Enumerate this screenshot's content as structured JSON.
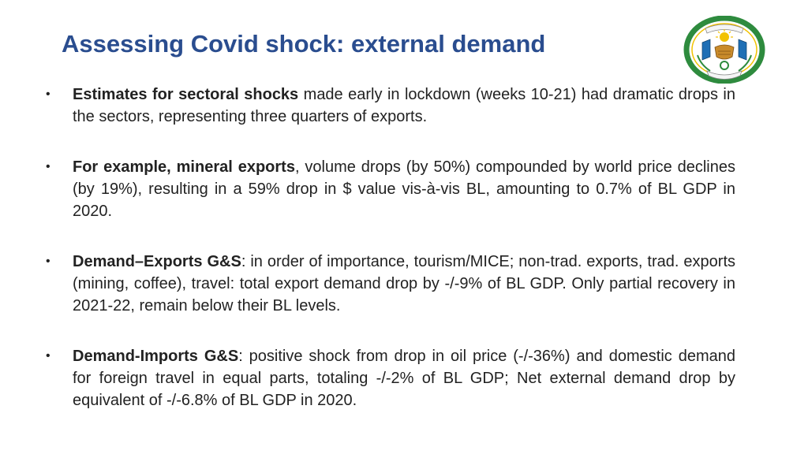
{
  "slide": {
    "title": "Assessing Covid shock: external demand",
    "emblem_icon": "rwanda-coat-of-arms-icon",
    "colors": {
      "title": "#2a4d8f",
      "body_text": "#222222",
      "emblem_green": "#2e8b3e",
      "emblem_yellow": "#f2c200",
      "emblem_blue": "#1f6fb5"
    },
    "bullets": [
      {
        "marker": "•",
        "lead": "Estimates for sectoral shocks",
        "rest": " made early in lockdown (weeks 10-21) had dramatic drops in the sectors, representing three quarters of exports."
      },
      {
        "marker": "•",
        "lead": "For example, mineral exports",
        "rest": ", volume drops (by 50%) compounded by world price declines (by 19%), resulting in a 59% drop in $ value vis-à-vis BL, amounting to 0.7% of BL GDP in 2020."
      },
      {
        "marker": "•",
        "lead": "Demand–Exports G&S",
        "rest": ": in order of importance, tourism/MICE; non-trad. exports, trad. exports (mining, coffee), travel: total export demand drop by -/-9% of BL GDP. Only partial recovery in 2021-22, remain below their BL levels."
      },
      {
        "marker": "•",
        "lead": "Demand-Imports G&S",
        "rest": ": positive shock from drop in oil price (-/-36%) and domestic demand for foreign travel in equal parts, totaling -/-2% of BL GDP; Net external demand drop by equivalent of -/-6.8% of BL GDP in 2020."
      }
    ]
  }
}
